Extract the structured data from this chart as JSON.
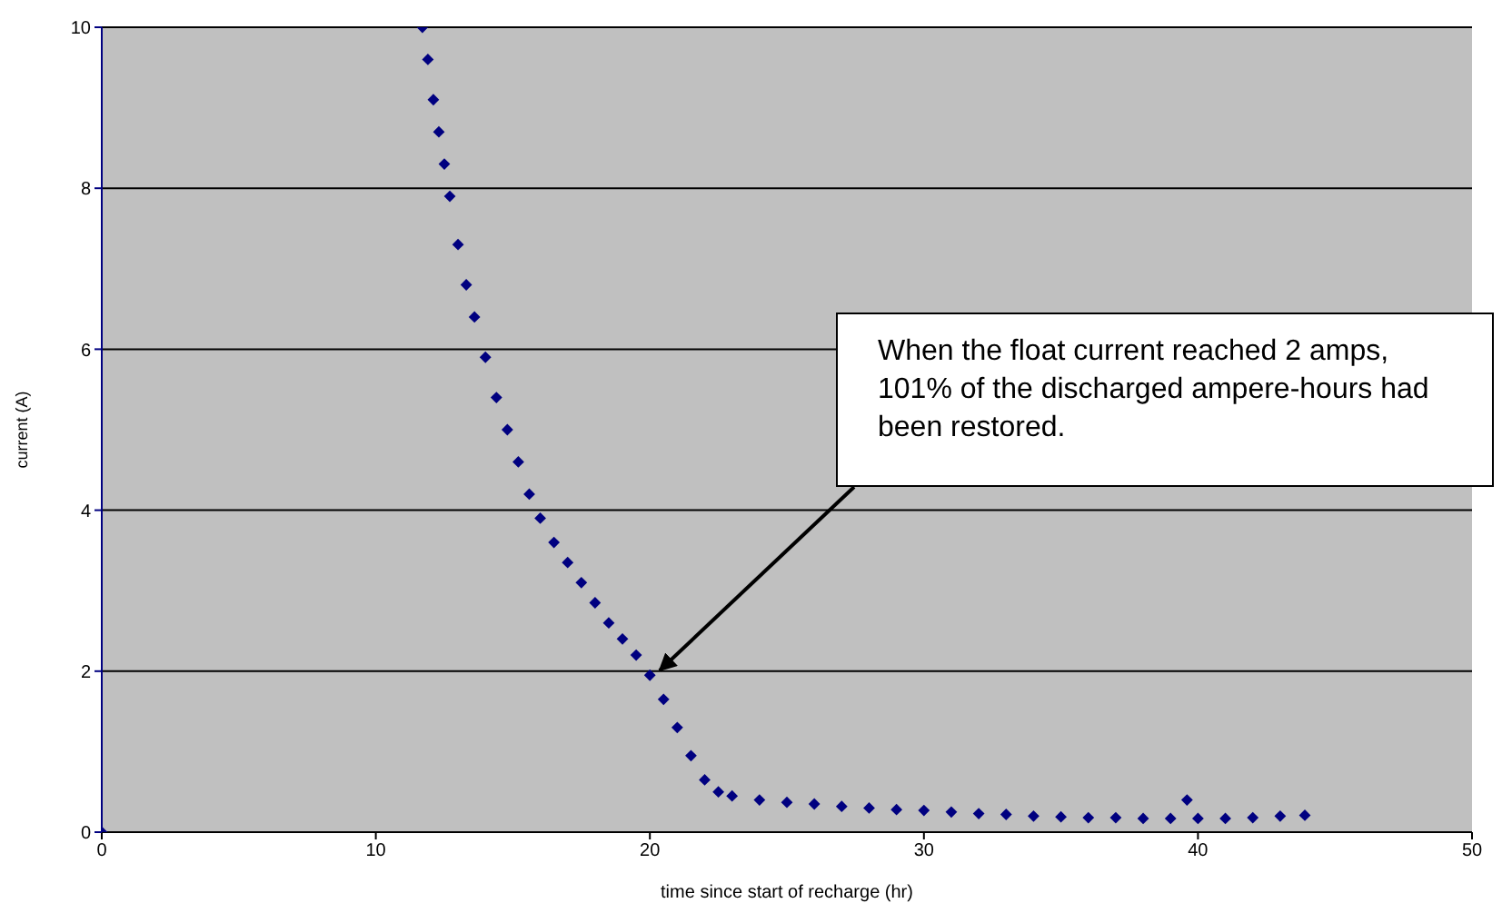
{
  "chart_data": {
    "type": "scatter",
    "xlabel": "time since start of recharge (hr)",
    "ylabel": "current (A)",
    "series": [
      {
        "color": "#000080",
        "x": [
          0,
          11.7,
          11.9,
          12.1,
          12.3,
          12.5,
          12.7,
          13.0,
          13.3,
          13.6,
          14.0,
          14.4,
          14.8,
          15.2,
          15.6,
          16.0,
          16.5,
          17.0,
          17.5,
          18.0,
          18.5,
          19.0,
          19.5,
          20.0,
          20.5,
          21.0,
          21.5,
          22.0,
          22.5,
          23.0,
          24,
          25,
          26,
          27,
          28,
          29,
          30,
          31,
          32,
          33,
          34,
          35,
          36,
          37,
          38,
          39,
          39.6,
          40,
          41,
          42,
          43,
          43.9
        ],
        "values": [
          0,
          10.0,
          9.6,
          9.1,
          8.7,
          8.3,
          7.9,
          7.3,
          6.8,
          6.4,
          5.9,
          5.4,
          5.0,
          4.6,
          4.2,
          3.9,
          3.6,
          3.35,
          3.1,
          2.85,
          2.6,
          2.4,
          2.2,
          1.95,
          1.65,
          1.3,
          0.95,
          0.65,
          0.5,
          0.45,
          0.4,
          0.37,
          0.35,
          0.32,
          0.3,
          0.28,
          0.27,
          0.25,
          0.23,
          0.22,
          0.2,
          0.19,
          0.18,
          0.18,
          0.17,
          0.17,
          0.4,
          0.17,
          0.17,
          0.18,
          0.2,
          0.21
        ]
      }
    ],
    "xlim": [
      0,
      50
    ],
    "xticks": [
      0,
      10,
      20,
      30,
      40,
      50
    ],
    "ylim": [
      0,
      10
    ],
    "yticks": [
      0,
      2,
      4,
      6,
      8,
      10
    ],
    "grid": "y",
    "marker": "diamond",
    "annotations": [
      "When the float current reached 2 amps, 101% of the discharged ampere-hours had been restored."
    ]
  }
}
